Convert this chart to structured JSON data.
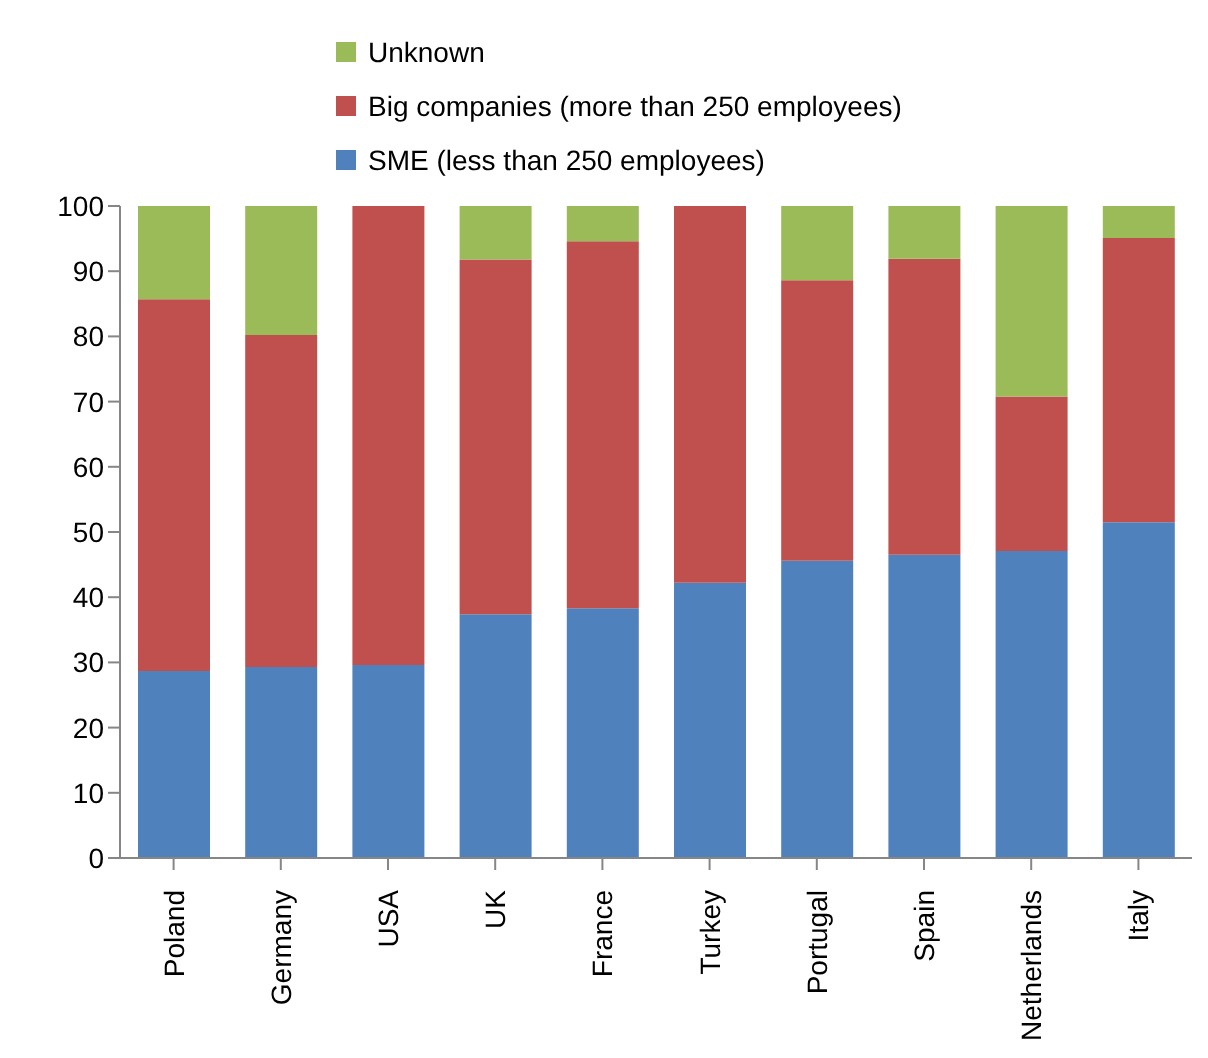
{
  "chart_data": {
    "type": "bar",
    "stacked": true,
    "categories": [
      "Poland",
      "Germany",
      "USA",
      "UK",
      "France",
      "Turkey",
      "Portugal",
      "Spain",
      "Netherlands",
      "Italy"
    ],
    "series": [
      {
        "name": "SME (less than 250 employees)",
        "color": "#4f81bd",
        "values": [
          28.7,
          29.3,
          29.6,
          37.4,
          38.3,
          42.2,
          45.6,
          46.5,
          47.1,
          51.5
        ]
      },
      {
        "name": "Big companies (more than 250 employees)",
        "color": "#c0504d",
        "values": [
          57.0,
          50.9,
          70.4,
          54.4,
          56.3,
          57.8,
          43.0,
          45.4,
          23.7,
          43.6
        ]
      },
      {
        "name": "Unknown",
        "color": "#9bbb59",
        "values": [
          14.3,
          19.8,
          0,
          8.2,
          5.4,
          0,
          11.4,
          8.1,
          29.2,
          4.9
        ]
      }
    ],
    "ylim": [
      0,
      100
    ],
    "yticks": [
      0,
      10,
      20,
      30,
      40,
      50,
      60,
      70,
      80,
      90,
      100
    ],
    "grid": false,
    "legend": "top"
  }
}
